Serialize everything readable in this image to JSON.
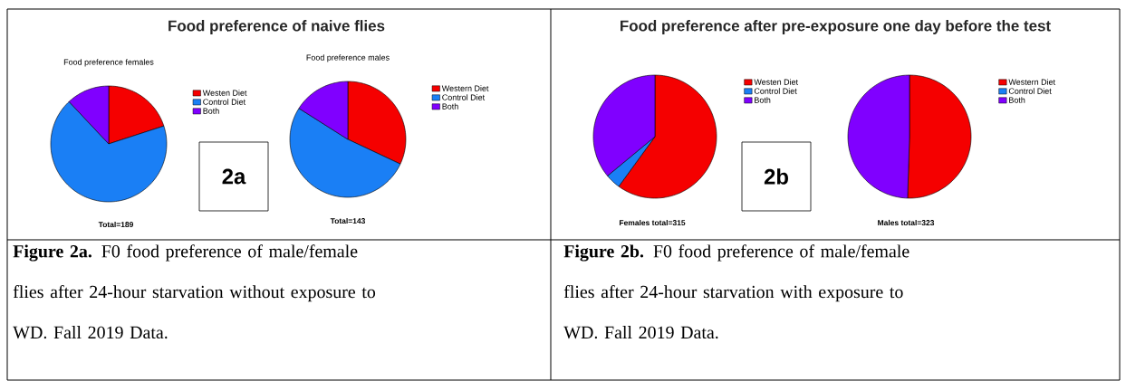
{
  "chart_data": [
    {
      "type": "pie",
      "title": "Food preference of naive flies",
      "subtitle": "Food preference females",
      "categories": [
        "Westen Diet",
        "Control Diet",
        "Both"
      ],
      "values": [
        20,
        68,
        12
      ],
      "colors": [
        "#f50000",
        "#1a7ff5",
        "#8000ff"
      ],
      "legend": "right",
      "annotations": [
        "Total=189",
        "2a",
        "**Figure 2a.** F0 food preference of male/female flies after 24-hour starvation without exposure to WD. Fall 2019 Data."
      ]
    },
    {
      "type": "pie",
      "subtitle": "Food preference males",
      "categories": [
        "Western Diet",
        "Control Diet",
        "Both"
      ],
      "values": [
        32,
        52,
        16
      ],
      "colors": [
        "#f50000",
        "#1a7ff5",
        "#8000ff"
      ],
      "legend": "right",
      "annotations": [
        "Total=143"
      ]
    },
    {
      "type": "pie",
      "title": "Food preference after pre-exposure one day before the test",
      "categories": [
        "Westen Diet",
        "Control Diet",
        "Both"
      ],
      "values": [
        60,
        4,
        36
      ],
      "colors": [
        "#f50000",
        "#1a7ff5",
        "#8000ff"
      ],
      "legend": "right",
      "annotations": [
        "Females total=315",
        "2b",
        "**Figure 2b.** F0 food preference of male/female flies after 24-hour starvation with exposure to WD. Fall 2019 Data."
      ]
    },
    {
      "type": "pie",
      "categories": [
        "Western Diet",
        "Control Diet",
        "Both"
      ],
      "values": [
        50.5,
        0,
        49.5
      ],
      "colors": [
        "#f50000",
        "#1a7ff5",
        "#8000ff"
      ],
      "legend": "right",
      "annotations": [
        "Males total=323"
      ]
    }
  ]
}
